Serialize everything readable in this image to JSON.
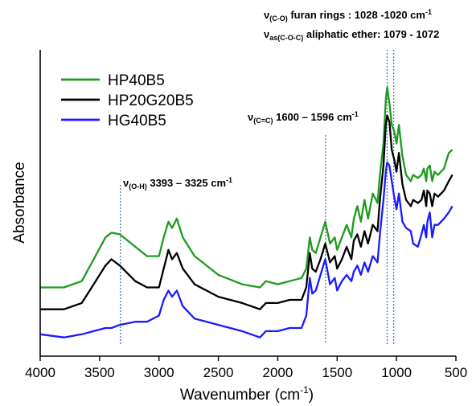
{
  "chart_data": {
    "type": "line",
    "xlabel": "Wavenumber (cm",
    "xlabel_sup": "-1",
    "xlabel_end": ")",
    "ylabel": "Absorbance",
    "xlim": [
      4000,
      500
    ],
    "x_ticks": [
      "4000",
      "3500",
      "3000",
      "2500",
      "2000",
      "1500",
      "1000",
      "500"
    ],
    "legend_position": "top-left",
    "series": [
      {
        "name": "HP40B5",
        "color": "#1e9a1e",
        "points": [
          [
            4000,
            0.36
          ],
          [
            3800,
            0.36
          ],
          [
            3650,
            0.38
          ],
          [
            3550,
            0.45
          ],
          [
            3450,
            0.52
          ],
          [
            3400,
            0.535
          ],
          [
            3330,
            0.53
          ],
          [
            3200,
            0.49
          ],
          [
            3100,
            0.46
          ],
          [
            3000,
            0.46
          ],
          [
            2960,
            0.52
          ],
          [
            2920,
            0.57
          ],
          [
            2890,
            0.55
          ],
          [
            2850,
            0.58
          ],
          [
            2800,
            0.52
          ],
          [
            2700,
            0.46
          ],
          [
            2500,
            0.4
          ],
          [
            2300,
            0.37
          ],
          [
            2150,
            0.36
          ],
          [
            2100,
            0.38
          ],
          [
            2000,
            0.37
          ],
          [
            1900,
            0.38
          ],
          [
            1800,
            0.39
          ],
          [
            1760,
            0.42
          ],
          [
            1730,
            0.52
          ],
          [
            1710,
            0.48
          ],
          [
            1680,
            0.47
          ],
          [
            1640,
            0.52
          ],
          [
            1600,
            0.57
          ],
          [
            1560,
            0.5
          ],
          [
            1520,
            0.52
          ],
          [
            1500,
            0.48
          ],
          [
            1460,
            0.52
          ],
          [
            1420,
            0.56
          ],
          [
            1380,
            0.52
          ],
          [
            1360,
            0.58
          ],
          [
            1330,
            0.62
          ],
          [
            1300,
            0.57
          ],
          [
            1270,
            0.64
          ],
          [
            1240,
            0.58
          ],
          [
            1200,
            0.66
          ],
          [
            1160,
            0.63
          ],
          [
            1140,
            0.72
          ],
          [
            1110,
            0.82
          ],
          [
            1090,
            0.96
          ],
          [
            1079,
            1.0
          ],
          [
            1060,
            0.95
          ],
          [
            1040,
            0.88
          ],
          [
            1020,
            0.86
          ],
          [
            1000,
            0.82
          ],
          [
            980,
            0.88
          ],
          [
            950,
            0.78
          ],
          [
            920,
            0.72
          ],
          [
            880,
            0.7
          ],
          [
            860,
            0.72
          ],
          [
            820,
            0.71
          ],
          [
            790,
            0.72
          ],
          [
            770,
            0.74
          ],
          [
            750,
            0.7
          ],
          [
            740,
            0.74
          ],
          [
            720,
            0.75
          ],
          [
            700,
            0.7
          ],
          [
            680,
            0.73
          ],
          [
            650,
            0.72
          ],
          [
            600,
            0.74
          ],
          [
            560,
            0.79
          ],
          [
            530,
            0.8
          ]
        ]
      },
      {
        "name": "HP20G20B5",
        "color": "#000000",
        "points": [
          [
            4000,
            0.29
          ],
          [
            3800,
            0.29
          ],
          [
            3650,
            0.31
          ],
          [
            3550,
            0.37
          ],
          [
            3450,
            0.43
          ],
          [
            3400,
            0.45
          ],
          [
            3330,
            0.43
          ],
          [
            3200,
            0.38
          ],
          [
            3100,
            0.36
          ],
          [
            3000,
            0.36
          ],
          [
            2960,
            0.42
          ],
          [
            2920,
            0.48
          ],
          [
            2890,
            0.45
          ],
          [
            2850,
            0.47
          ],
          [
            2800,
            0.42
          ],
          [
            2700,
            0.37
          ],
          [
            2500,
            0.33
          ],
          [
            2300,
            0.31
          ],
          [
            2150,
            0.29
          ],
          [
            2100,
            0.31
          ],
          [
            2000,
            0.31
          ],
          [
            1900,
            0.32
          ],
          [
            1800,
            0.32
          ],
          [
            1760,
            0.36
          ],
          [
            1730,
            0.47
          ],
          [
            1710,
            0.42
          ],
          [
            1680,
            0.41
          ],
          [
            1640,
            0.45
          ],
          [
            1600,
            0.5
          ],
          [
            1560,
            0.44
          ],
          [
            1520,
            0.46
          ],
          [
            1500,
            0.42
          ],
          [
            1460,
            0.45
          ],
          [
            1420,
            0.49
          ],
          [
            1380,
            0.45
          ],
          [
            1360,
            0.51
          ],
          [
            1330,
            0.53
          ],
          [
            1300,
            0.49
          ],
          [
            1270,
            0.54
          ],
          [
            1240,
            0.5
          ],
          [
            1200,
            0.56
          ],
          [
            1160,
            0.54
          ],
          [
            1140,
            0.64
          ],
          [
            1110,
            0.75
          ],
          [
            1090,
            0.88
          ],
          [
            1079,
            0.91
          ],
          [
            1060,
            0.89
          ],
          [
            1040,
            0.8
          ],
          [
            1020,
            0.77
          ],
          [
            1000,
            0.73
          ],
          [
            980,
            0.79
          ],
          [
            950,
            0.69
          ],
          [
            920,
            0.64
          ],
          [
            880,
            0.62
          ],
          [
            860,
            0.64
          ],
          [
            820,
            0.63
          ],
          [
            790,
            0.64
          ],
          [
            770,
            0.67
          ],
          [
            750,
            0.62
          ],
          [
            740,
            0.67
          ],
          [
            720,
            0.66
          ],
          [
            700,
            0.62
          ],
          [
            680,
            0.66
          ],
          [
            650,
            0.65
          ],
          [
            600,
            0.67
          ],
          [
            560,
            0.7
          ],
          [
            530,
            0.72
          ]
        ]
      },
      {
        "name": "HG40B5",
        "color": "#1a1aff",
        "points": [
          [
            4000,
            0.21
          ],
          [
            3800,
            0.2
          ],
          [
            3650,
            0.21
          ],
          [
            3550,
            0.22
          ],
          [
            3450,
            0.23
          ],
          [
            3400,
            0.23
          ],
          [
            3330,
            0.24
          ],
          [
            3200,
            0.25
          ],
          [
            3100,
            0.25
          ],
          [
            3000,
            0.27
          ],
          [
            2960,
            0.32
          ],
          [
            2920,
            0.35
          ],
          [
            2890,
            0.33
          ],
          [
            2850,
            0.35
          ],
          [
            2800,
            0.3
          ],
          [
            2700,
            0.26
          ],
          [
            2500,
            0.24
          ],
          [
            2300,
            0.22
          ],
          [
            2150,
            0.2
          ],
          [
            2100,
            0.22
          ],
          [
            2000,
            0.22
          ],
          [
            1900,
            0.23
          ],
          [
            1800,
            0.23
          ],
          [
            1760,
            0.27
          ],
          [
            1730,
            0.39
          ],
          [
            1710,
            0.34
          ],
          [
            1680,
            0.35
          ],
          [
            1640,
            0.4
          ],
          [
            1600,
            0.45
          ],
          [
            1560,
            0.37
          ],
          [
            1520,
            0.39
          ],
          [
            1500,
            0.35
          ],
          [
            1460,
            0.38
          ],
          [
            1420,
            0.4
          ],
          [
            1380,
            0.38
          ],
          [
            1360,
            0.41
          ],
          [
            1330,
            0.43
          ],
          [
            1300,
            0.4
          ],
          [
            1270,
            0.44
          ],
          [
            1240,
            0.41
          ],
          [
            1200,
            0.46
          ],
          [
            1160,
            0.44
          ],
          [
            1140,
            0.53
          ],
          [
            1110,
            0.64
          ],
          [
            1090,
            0.73
          ],
          [
            1079,
            0.76
          ],
          [
            1060,
            0.75
          ],
          [
            1040,
            0.7
          ],
          [
            1020,
            0.65
          ],
          [
            1000,
            0.61
          ],
          [
            980,
            0.66
          ],
          [
            950,
            0.57
          ],
          [
            920,
            0.55
          ],
          [
            880,
            0.54
          ],
          [
            860,
            0.5
          ],
          [
            820,
            0.49
          ],
          [
            790,
            0.53
          ],
          [
            770,
            0.56
          ],
          [
            750,
            0.52
          ],
          [
            740,
            0.57
          ],
          [
            720,
            0.6
          ],
          [
            700,
            0.52
          ],
          [
            680,
            0.56
          ],
          [
            650,
            0.56
          ],
          [
            600,
            0.58
          ],
          [
            560,
            0.6
          ],
          [
            530,
            0.62
          ]
        ]
      }
    ],
    "ylim": [
      0.14,
      1.12
    ],
    "reference_lines_x": [
      3325,
      1598,
      1079,
      1024
    ],
    "annotations": [
      {
        "id": "oh",
        "nu": "ν",
        "sub": "(O-H)",
        "text": " 3393 – 3325 cm",
        "sup": "-1"
      },
      {
        "id": "cc",
        "nu": "ν",
        "sub": "(C=C)",
        "text": " 1600 – 1596 cm",
        "sup": "-1"
      },
      {
        "id": "co",
        "nu": "ν",
        "sub": "(C-O)",
        "text": " furan rings : 1028 -1020 cm",
        "sup": "-1"
      },
      {
        "id": "coc",
        "nu": "ν",
        "sub": "as(C-O-C)",
        "text": " aliphatic ether: 1079 - 1072",
        "sup": ""
      }
    ],
    "reference_line_color": "#4a78c8"
  }
}
